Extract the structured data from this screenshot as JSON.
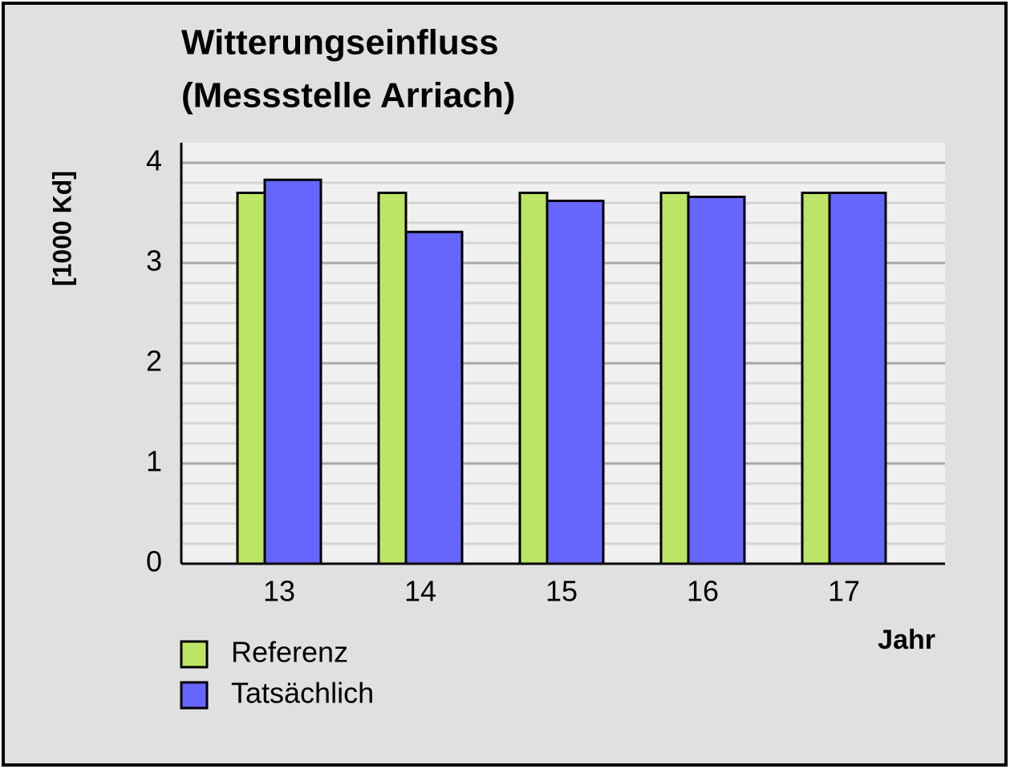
{
  "chart_data": {
    "type": "bar",
    "title": [
      "Witterungseinfluss",
      "(Messstelle Arriach)"
    ],
    "y_label": "[1000 Kd]",
    "x_label": "Jahr",
    "categories": [
      "13",
      "14",
      "15",
      "16",
      "17"
    ],
    "series": [
      {
        "name": "Referenz",
        "color": "#bde565",
        "values": [
          3.7,
          3.7,
          3.7,
          3.7,
          3.7
        ]
      },
      {
        "name": "Tatsächlich",
        "color": "#6666ff",
        "values": [
          3.83,
          3.31,
          3.62,
          3.66,
          3.7
        ]
      }
    ],
    "ylim": [
      0,
      4.2
    ],
    "yticks": [
      0,
      1,
      2,
      3,
      4
    ],
    "yminorticks": [
      0.2,
      0.4,
      0.6,
      0.8,
      1.2,
      1.4,
      1.6,
      1.8,
      2.2,
      2.4,
      2.6,
      2.8,
      3.2,
      3.4,
      3.6,
      3.8
    ],
    "grid": true,
    "legend": "bottom-left"
  }
}
